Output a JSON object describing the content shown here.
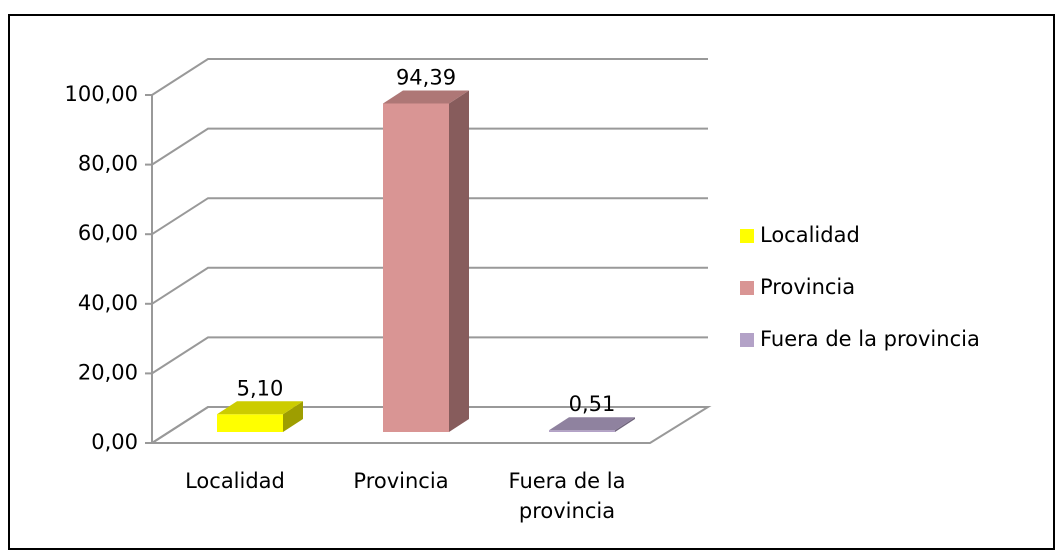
{
  "chart_data": {
    "type": "bar3d",
    "categories": [
      "Localidad",
      "Provincia",
      "Fuera de la provincia"
    ],
    "values": [
      5.1,
      94.39,
      0.51
    ],
    "value_labels": [
      "5,10",
      "94,39",
      "0,51"
    ],
    "colors": [
      "#ffff00",
      "#d99594",
      "#b3a2c7"
    ],
    "ylim": [
      0,
      100
    ],
    "yticks": [
      {
        "value": 0,
        "label": "0,00"
      },
      {
        "value": 20,
        "label": "20,00"
      },
      {
        "value": 40,
        "label": "40,00"
      },
      {
        "value": 60,
        "label": "60,00"
      },
      {
        "value": 80,
        "label": "80,00"
      },
      {
        "value": 100,
        "label": "100,00"
      }
    ],
    "grid": true,
    "legend": "right"
  }
}
